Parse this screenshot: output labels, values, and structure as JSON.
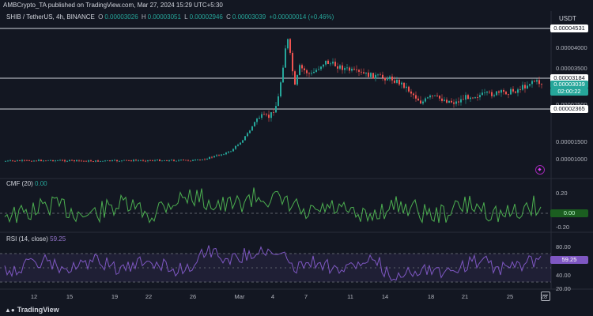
{
  "header": {
    "publisher": "AMBCrypto_TA published on TradingView.com, Mar 27, 2024 15:29 UTC+5:30",
    "symbol": "SHIB / TetherUS, 4h, BINANCE",
    "ohlc": {
      "open_label": "O",
      "open": "0.00003026",
      "high_label": "H",
      "high": "0.00003051",
      "low_label": "L",
      "low": "0.00002946",
      "close_label": "C",
      "close": "0.00003039",
      "change": "+0.00000014 (+0.46%)"
    },
    "currency": "USDT"
  },
  "price_axis": {
    "ticks": [
      "0.00004000",
      "0.00003500",
      "0.00002500",
      "0.00001500",
      "0.00001000"
    ],
    "levels": {
      "resistance_top": "0.00004531",
      "resistance_mid": "0.00003184",
      "support": "0.00002365"
    },
    "current_price": "0.00003039",
    "countdown": "02:00:22"
  },
  "cmf": {
    "label": "CMF (20)",
    "value": "0.00",
    "ticks": [
      "0.20",
      "-0.20"
    ]
  },
  "rsi": {
    "label": "RSI (14, close)",
    "value": "59.25",
    "ticks": [
      "80.00",
      "40.00",
      "20.00"
    ]
  },
  "time_axis": {
    "labels": [
      "12",
      "15",
      "19",
      "22",
      "26",
      "Mar",
      "4",
      "7",
      "11",
      "14",
      "18",
      "21",
      "25",
      "28"
    ]
  },
  "footer": {
    "brand": "TradingView",
    "brand_icon": "tradingview-logo-icon"
  },
  "colors": {
    "up": "#26a69a",
    "down": "#ef5350",
    "cmf_line": "#4caf50",
    "rsi_line": "#7e57c2",
    "background": "#131722"
  }
}
